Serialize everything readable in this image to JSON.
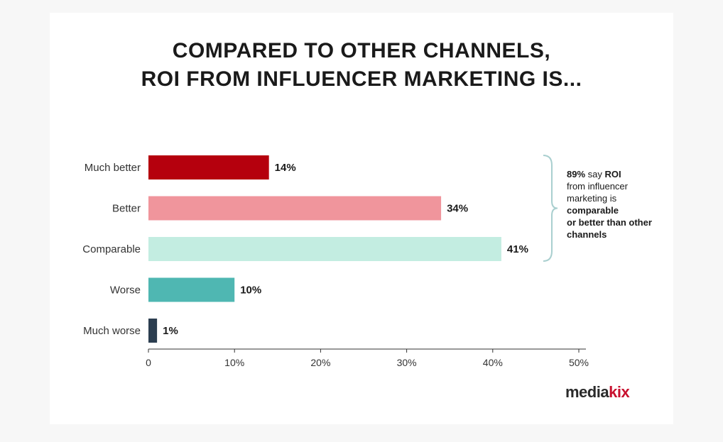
{
  "title": {
    "line1": "COMPARED TO OTHER CHANNELS,",
    "line2": "ROI FROM INFLUENCER MARKETING IS..."
  },
  "chart_data": {
    "type": "bar",
    "orientation": "horizontal",
    "title": "COMPARED TO OTHER CHANNELS, ROI FROM INFLUENCER MARKETING IS...",
    "categories": [
      "Much better",
      "Better",
      "Comparable",
      "Worse",
      "Much worse"
    ],
    "values": [
      14,
      34,
      41,
      10,
      1
    ],
    "value_labels": [
      "14%",
      "34%",
      "41%",
      "10%",
      "1%"
    ],
    "colors": [
      "#b5000d",
      "#f0959c",
      "#c3ede1",
      "#4fb7b2",
      "#2c3e50"
    ],
    "xlim": [
      0,
      50
    ],
    "xticks": [
      0,
      10,
      20,
      30,
      40,
      50
    ],
    "xtick_labels": [
      "0",
      "10%",
      "20%",
      "30%",
      "40%",
      "50%"
    ],
    "xlabel": "",
    "ylabel": "",
    "grid": false,
    "legend": "none"
  },
  "annotation": {
    "prefix": "89%",
    "say": " say ",
    "roi": "ROI",
    "mid": "from influencer marketing is",
    "bold1": "comparable",
    "bold2": "or better than other channels"
  },
  "logo": {
    "text_main": "media",
    "text_accent": "kix"
  }
}
